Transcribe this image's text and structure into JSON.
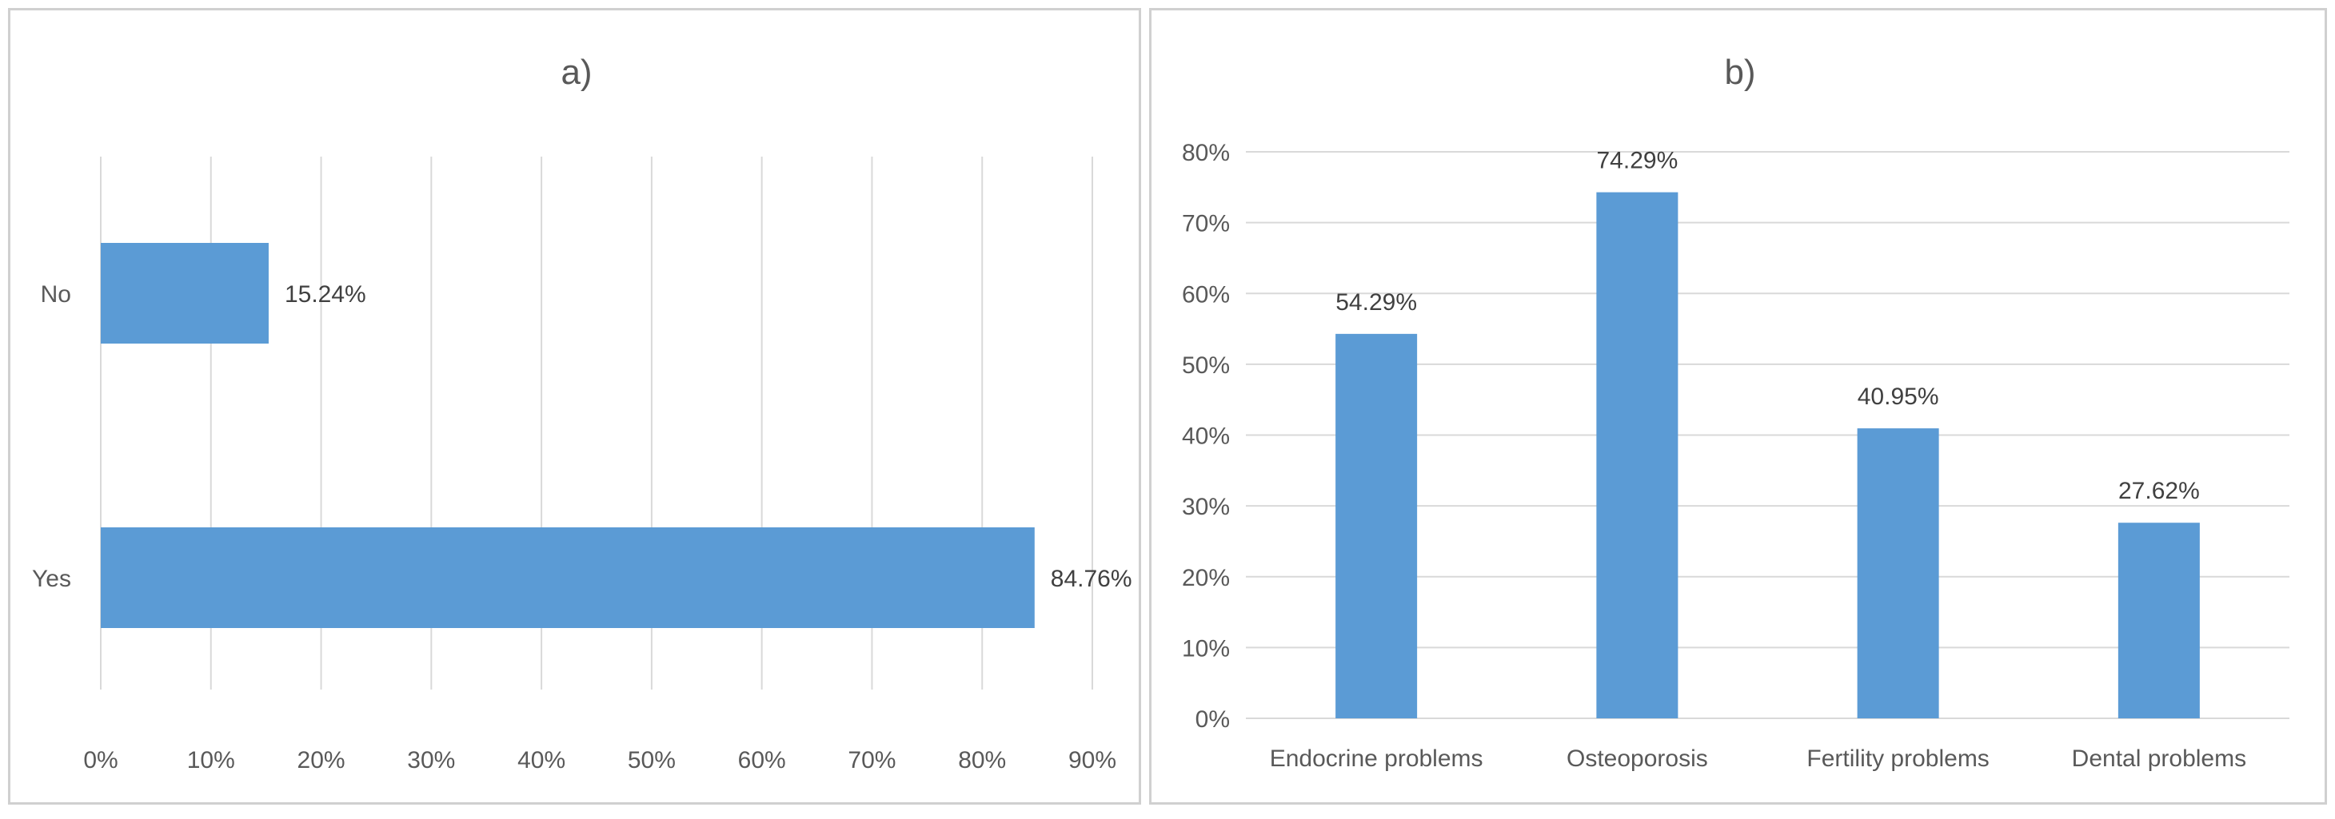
{
  "chart_data": [
    {
      "id": "a",
      "type": "bar",
      "orientation": "horizontal",
      "title": "a)",
      "categories": [
        "No",
        "Yes"
      ],
      "values": [
        15.24,
        84.76
      ],
      "value_labels": [
        "15.24%",
        "84.76%"
      ],
      "xlim": [
        0,
        90
      ],
      "ticks": [
        "0%",
        "10%",
        "20%",
        "30%",
        "40%",
        "50%",
        "60%",
        "70%",
        "80%",
        "90%"
      ],
      "grid": "vertical",
      "bar_color": "#5b9bd5"
    },
    {
      "id": "b",
      "type": "bar",
      "orientation": "vertical",
      "title": "b)",
      "categories": [
        "Endocrine problems",
        "Osteoporosis",
        "Fertility problems",
        "Dental problems"
      ],
      "values": [
        54.29,
        74.29,
        40.95,
        27.62
      ],
      "value_labels": [
        "54.29%",
        "74.29%",
        "40.95%",
        "27.62%"
      ],
      "ylim": [
        0,
        80
      ],
      "ticks": [
        "0%",
        "10%",
        "20%",
        "30%",
        "40%",
        "50%",
        "60%",
        "70%",
        "80%"
      ],
      "grid": "horizontal",
      "bar_color": "#5b9bd5"
    }
  ]
}
